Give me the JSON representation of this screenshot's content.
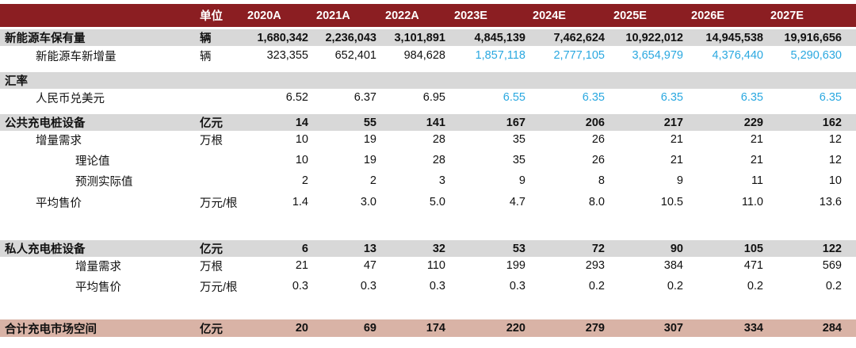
{
  "header": {
    "unit": "单位",
    "years": [
      "2020A",
      "2021A",
      "2022A",
      "2023E",
      "2024E",
      "2025E",
      "2026E",
      "2027E"
    ]
  },
  "nev_stock": {
    "label": "新能源车保有量",
    "unit": "辆",
    "values": [
      "1,680,342",
      "2,236,043",
      "3,101,891",
      "4,845,139",
      "7,462,624",
      "10,922,012",
      "14,945,538",
      "19,916,656"
    ]
  },
  "nev_new": {
    "label": "新能源车新增量",
    "unit": "辆",
    "values": [
      "323,355",
      "652,401",
      "984,628",
      "1,857,118",
      "2,777,105",
      "3,654,979",
      "4,376,440",
      "5,290,630"
    ]
  },
  "fx_section": {
    "label": "汇率"
  },
  "fx_rate": {
    "label": "人民币兑美元",
    "values": [
      "6.52",
      "6.37",
      "6.95",
      "6.55",
      "6.35",
      "6.35",
      "6.35",
      "6.35"
    ]
  },
  "public": {
    "label": "公共充电桩设备",
    "unit": "亿元",
    "values": [
      "14",
      "55",
      "141",
      "167",
      "206",
      "217",
      "229",
      "162"
    ]
  },
  "public_demand": {
    "label": "增量需求",
    "unit": "万根",
    "values": [
      "10",
      "19",
      "28",
      "35",
      "26",
      "21",
      "21",
      "12"
    ]
  },
  "public_theory": {
    "label": "理论值",
    "values": [
      "10",
      "19",
      "28",
      "35",
      "26",
      "21",
      "21",
      "12"
    ]
  },
  "public_forecast": {
    "label": "预测实际值",
    "values": [
      "2",
      "2",
      "3",
      "9",
      "8",
      "9",
      "11",
      "10"
    ]
  },
  "public_price": {
    "label": "平均售价",
    "unit": "万元/根",
    "values": [
      "1.4",
      "3.0",
      "5.0",
      "4.7",
      "8.0",
      "10.5",
      "11.0",
      "13.6"
    ]
  },
  "private": {
    "label": "私人充电桩设备",
    "unit": "亿元",
    "values": [
      "6",
      "13",
      "32",
      "53",
      "72",
      "90",
      "105",
      "122"
    ]
  },
  "private_demand": {
    "label": "增量需求",
    "unit": "万根",
    "values": [
      "21",
      "47",
      "110",
      "199",
      "293",
      "384",
      "471",
      "569"
    ]
  },
  "private_price": {
    "label": "平均售价",
    "unit": "万元/根",
    "values": [
      "0.3",
      "0.3",
      "0.3",
      "0.3",
      "0.2",
      "0.2",
      "0.2",
      "0.2"
    ]
  },
  "total": {
    "label": "合计充电市场空间",
    "unit": "亿元",
    "values": [
      "20",
      "69",
      "174",
      "220",
      "279",
      "307",
      "334",
      "284"
    ]
  },
  "colors": {
    "header_bg": "#8b1e22",
    "section_bg": "#d8d8d8",
    "total_bg": "#d9b3a6",
    "estimate_text": "#2aa8e0"
  }
}
